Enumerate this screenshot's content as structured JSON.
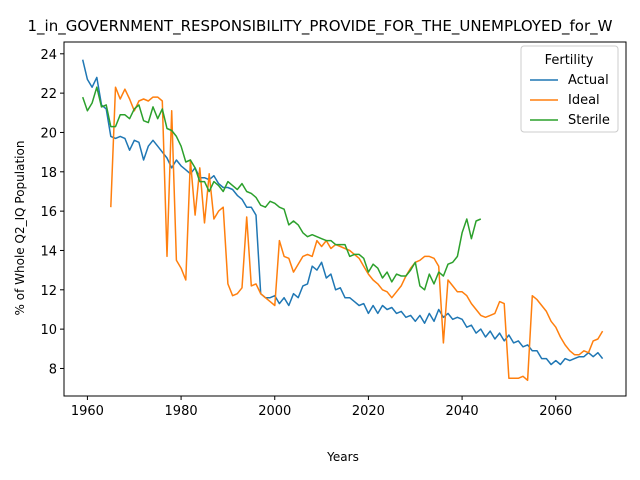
{
  "chart_data": {
    "type": "line",
    "title": "1_in_GOVERNMENT_RESPONSIBILITY_PROVIDE_FOR_THE_UNEMPLOYED_for_W",
    "xlabel": "Years",
    "ylabel": "% of Whole Q2_IQ Population",
    "xlim": [
      1955,
      2075
    ],
    "ylim": [
      6.6,
      24.6
    ],
    "xticks": [
      1960,
      1980,
      2000,
      2020,
      2040,
      2060
    ],
    "yticks": [
      8,
      10,
      12,
      14,
      16,
      18,
      20,
      22,
      24
    ],
    "grid": false,
    "legend": {
      "title": "Fertility",
      "placement": "top-right"
    },
    "series": [
      {
        "name": "Actual",
        "color": "#1f77b4",
        "points": [
          [
            1959,
            23.7
          ],
          [
            1960,
            22.7
          ],
          [
            1961,
            22.3
          ],
          [
            1962,
            22.8
          ],
          [
            1963,
            21.4
          ],
          [
            1964,
            21.2
          ],
          [
            1965,
            19.8
          ],
          [
            1966,
            19.7
          ],
          [
            1967,
            19.8
          ],
          [
            1968,
            19.7
          ],
          [
            1969,
            19.1
          ],
          [
            1970,
            19.6
          ],
          [
            1971,
            19.5
          ],
          [
            1972,
            18.6
          ],
          [
            1973,
            19.3
          ],
          [
            1974,
            19.6
          ],
          [
            1975,
            19.3
          ],
          [
            1976,
            19.0
          ],
          [
            1977,
            18.7
          ],
          [
            1978,
            18.2
          ],
          [
            1979,
            18.6
          ],
          [
            1980,
            18.3
          ],
          [
            1981,
            18.1
          ],
          [
            1982,
            17.9
          ],
          [
            1983,
            18.2
          ],
          [
            1984,
            17.7
          ],
          [
            1985,
            17.7
          ],
          [
            1986,
            17.6
          ],
          [
            1987,
            17.8
          ],
          [
            1988,
            17.4
          ],
          [
            1989,
            17.2
          ],
          [
            1990,
            17.2
          ],
          [
            1991,
            17.1
          ],
          [
            1992,
            16.8
          ],
          [
            1993,
            16.6
          ],
          [
            1994,
            16.2
          ],
          [
            1995,
            16.2
          ],
          [
            1996,
            15.8
          ],
          [
            1997,
            11.8
          ],
          [
            1998,
            11.6
          ],
          [
            1999,
            11.6
          ],
          [
            2000,
            11.7
          ],
          [
            2001,
            11.3
          ],
          [
            2002,
            11.6
          ],
          [
            2003,
            11.2
          ],
          [
            2004,
            11.8
          ],
          [
            2005,
            11.6
          ],
          [
            2006,
            12.2
          ],
          [
            2007,
            12.3
          ],
          [
            2008,
            13.2
          ],
          [
            2009,
            13.0
          ],
          [
            2010,
            13.4
          ],
          [
            2011,
            12.6
          ],
          [
            2012,
            12.8
          ],
          [
            2013,
            12.0
          ],
          [
            2014,
            12.1
          ],
          [
            2015,
            11.6
          ],
          [
            2016,
            11.6
          ],
          [
            2017,
            11.4
          ],
          [
            2018,
            11.2
          ],
          [
            2019,
            11.3
          ],
          [
            2020,
            10.8
          ],
          [
            2021,
            11.2
          ],
          [
            2022,
            10.8
          ],
          [
            2023,
            11.2
          ],
          [
            2024,
            11.0
          ],
          [
            2025,
            11.1
          ],
          [
            2026,
            10.8
          ],
          [
            2027,
            10.9
          ],
          [
            2028,
            10.6
          ],
          [
            2029,
            10.7
          ],
          [
            2030,
            10.4
          ],
          [
            2031,
            10.7
          ],
          [
            2032,
            10.3
          ],
          [
            2033,
            10.8
          ],
          [
            2034,
            10.4
          ],
          [
            2035,
            11.0
          ],
          [
            2036,
            10.6
          ],
          [
            2037,
            10.8
          ],
          [
            2038,
            10.5
          ],
          [
            2039,
            10.6
          ],
          [
            2040,
            10.5
          ],
          [
            2041,
            10.1
          ],
          [
            2042,
            10.2
          ],
          [
            2043,
            9.8
          ],
          [
            2044,
            10.0
          ],
          [
            2045,
            9.6
          ],
          [
            2046,
            9.9
          ],
          [
            2047,
            9.5
          ],
          [
            2048,
            9.8
          ],
          [
            2049,
            9.4
          ],
          [
            2050,
            9.7
          ],
          [
            2051,
            9.3
          ],
          [
            2052,
            9.4
          ],
          [
            2053,
            9.1
          ],
          [
            2054,
            9.2
          ],
          [
            2055,
            8.9
          ],
          [
            2056,
            8.9
          ],
          [
            2057,
            8.5
          ],
          [
            2058,
            8.5
          ],
          [
            2059,
            8.2
          ],
          [
            2060,
            8.4
          ],
          [
            2061,
            8.2
          ],
          [
            2062,
            8.5
          ],
          [
            2063,
            8.4
          ],
          [
            2064,
            8.5
          ],
          [
            2065,
            8.6
          ],
          [
            2066,
            8.6
          ],
          [
            2067,
            8.8
          ],
          [
            2068,
            8.6
          ],
          [
            2069,
            8.8
          ],
          [
            2070,
            8.5
          ]
        ]
      },
      {
        "name": "Ideal",
        "color": "#ff7f0e",
        "points": [
          [
            1965,
            16.2
          ],
          [
            1966,
            22.3
          ],
          [
            1967,
            21.7
          ],
          [
            1968,
            22.2
          ],
          [
            1969,
            21.7
          ],
          [
            1970,
            21.1
          ],
          [
            1971,
            21.6
          ],
          [
            1972,
            21.7
          ],
          [
            1973,
            21.6
          ],
          [
            1974,
            21.8
          ],
          [
            1975,
            21.8
          ],
          [
            1976,
            21.6
          ],
          [
            1977,
            13.7
          ],
          [
            1978,
            21.1
          ],
          [
            1979,
            13.5
          ],
          [
            1980,
            13.1
          ],
          [
            1981,
            12.5
          ],
          [
            1982,
            18.6
          ],
          [
            1983,
            15.8
          ],
          [
            1984,
            18.2
          ],
          [
            1985,
            15.4
          ],
          [
            1986,
            17.9
          ],
          [
            1987,
            15.6
          ],
          [
            1988,
            16.0
          ],
          [
            1989,
            16.2
          ],
          [
            1990,
            12.3
          ],
          [
            1991,
            11.7
          ],
          [
            1992,
            11.8
          ],
          [
            1993,
            12.1
          ],
          [
            1994,
            15.7
          ],
          [
            1995,
            12.2
          ],
          [
            1996,
            12.3
          ],
          [
            1997,
            11.8
          ],
          [
            1998,
            11.6
          ],
          [
            1999,
            11.4
          ],
          [
            2000,
            11.2
          ],
          [
            2001,
            14.5
          ],
          [
            2002,
            13.7
          ],
          [
            2003,
            13.6
          ],
          [
            2004,
            12.9
          ],
          [
            2005,
            13.3
          ],
          [
            2006,
            13.7
          ],
          [
            2007,
            13.8
          ],
          [
            2008,
            13.7
          ],
          [
            2009,
            14.5
          ],
          [
            2010,
            14.2
          ],
          [
            2011,
            14.5
          ],
          [
            2012,
            14.1
          ],
          [
            2013,
            14.3
          ],
          [
            2014,
            14.2
          ],
          [
            2015,
            14.1
          ],
          [
            2016,
            14.0
          ],
          [
            2017,
            13.8
          ],
          [
            2018,
            13.6
          ],
          [
            2019,
            13.2
          ],
          [
            2020,
            12.8
          ],
          [
            2021,
            12.5
          ],
          [
            2022,
            12.3
          ],
          [
            2023,
            12.0
          ],
          [
            2024,
            11.9
          ],
          [
            2025,
            11.6
          ],
          [
            2026,
            11.9
          ],
          [
            2027,
            12.2
          ],
          [
            2028,
            12.7
          ],
          [
            2029,
            13.1
          ],
          [
            2030,
            13.4
          ],
          [
            2031,
            13.5
          ],
          [
            2032,
            13.7
          ],
          [
            2033,
            13.7
          ],
          [
            2034,
            13.6
          ],
          [
            2035,
            13.2
          ],
          [
            2036,
            9.3
          ],
          [
            2037,
            12.5
          ],
          [
            2038,
            12.2
          ],
          [
            2039,
            11.9
          ],
          [
            2040,
            11.9
          ],
          [
            2041,
            11.7
          ],
          [
            2042,
            11.3
          ],
          [
            2043,
            11.0
          ],
          [
            2044,
            10.7
          ],
          [
            2045,
            10.6
          ],
          [
            2046,
            10.7
          ],
          [
            2047,
            10.8
          ],
          [
            2048,
            11.4
          ],
          [
            2049,
            11.3
          ],
          [
            2050,
            7.5
          ],
          [
            2051,
            7.5
          ],
          [
            2052,
            7.5
          ],
          [
            2053,
            7.6
          ],
          [
            2054,
            7.4
          ],
          [
            2055,
            11.7
          ],
          [
            2056,
            11.5
          ],
          [
            2057,
            11.2
          ],
          [
            2058,
            10.9
          ],
          [
            2059,
            10.4
          ],
          [
            2060,
            10.1
          ],
          [
            2061,
            9.6
          ],
          [
            2062,
            9.2
          ],
          [
            2063,
            8.9
          ],
          [
            2064,
            8.7
          ],
          [
            2065,
            8.7
          ],
          [
            2066,
            8.9
          ],
          [
            2067,
            8.8
          ],
          [
            2068,
            9.4
          ],
          [
            2069,
            9.5
          ],
          [
            2070,
            9.9
          ]
        ]
      },
      {
        "name": "Sterile",
        "color": "#2ca02c",
        "points": [
          [
            1959,
            21.8
          ],
          [
            1960,
            21.1
          ],
          [
            1961,
            21.5
          ],
          [
            1962,
            22.3
          ],
          [
            1963,
            21.3
          ],
          [
            1964,
            21.4
          ],
          [
            1965,
            20.3
          ],
          [
            1966,
            20.3
          ],
          [
            1967,
            20.9
          ],
          [
            1968,
            20.9
          ],
          [
            1969,
            20.7
          ],
          [
            1970,
            21.2
          ],
          [
            1971,
            21.4
          ],
          [
            1972,
            20.6
          ],
          [
            1973,
            20.5
          ],
          [
            1974,
            21.3
          ],
          [
            1975,
            20.7
          ],
          [
            1976,
            21.2
          ],
          [
            1977,
            20.2
          ],
          [
            1978,
            20.1
          ],
          [
            1979,
            19.8
          ],
          [
            1980,
            19.3
          ],
          [
            1981,
            18.5
          ],
          [
            1982,
            18.6
          ],
          [
            1983,
            18.2
          ],
          [
            1984,
            17.5
          ],
          [
            1985,
            17.5
          ],
          [
            1986,
            17.0
          ],
          [
            1987,
            17.5
          ],
          [
            1988,
            17.3
          ],
          [
            1989,
            17.0
          ],
          [
            1990,
            17.5
          ],
          [
            1991,
            17.3
          ],
          [
            1992,
            17.1
          ],
          [
            1993,
            17.4
          ],
          [
            1994,
            17.0
          ],
          [
            1995,
            16.9
          ],
          [
            1996,
            16.7
          ],
          [
            1997,
            16.3
          ],
          [
            1998,
            16.2
          ],
          [
            1999,
            16.5
          ],
          [
            2000,
            16.4
          ],
          [
            2001,
            16.2
          ],
          [
            2002,
            16.1
          ],
          [
            2003,
            15.3
          ],
          [
            2004,
            15.5
          ],
          [
            2005,
            15.3
          ],
          [
            2006,
            14.9
          ],
          [
            2007,
            14.7
          ],
          [
            2008,
            14.8
          ],
          [
            2009,
            14.7
          ],
          [
            2010,
            14.6
          ],
          [
            2011,
            14.5
          ],
          [
            2012,
            14.5
          ],
          [
            2013,
            14.3
          ],
          [
            2014,
            14.3
          ],
          [
            2015,
            14.3
          ],
          [
            2016,
            13.7
          ],
          [
            2017,
            13.8
          ],
          [
            2018,
            13.8
          ],
          [
            2019,
            13.6
          ],
          [
            2020,
            12.9
          ],
          [
            2021,
            13.3
          ],
          [
            2022,
            13.1
          ],
          [
            2023,
            12.6
          ],
          [
            2024,
            12.9
          ],
          [
            2025,
            12.4
          ],
          [
            2026,
            12.8
          ],
          [
            2027,
            12.7
          ],
          [
            2028,
            12.7
          ],
          [
            2029,
            13.0
          ],
          [
            2030,
            13.4
          ],
          [
            2031,
            12.2
          ],
          [
            2032,
            12.0
          ],
          [
            2033,
            12.8
          ],
          [
            2034,
            12.3
          ],
          [
            2035,
            12.9
          ],
          [
            2036,
            12.7
          ],
          [
            2037,
            13.3
          ],
          [
            2038,
            13.4
          ],
          [
            2039,
            13.7
          ],
          [
            2040,
            14.9
          ],
          [
            2041,
            15.6
          ],
          [
            2042,
            14.6
          ],
          [
            2043,
            15.5
          ],
          [
            2044,
            15.6
          ]
        ]
      }
    ]
  }
}
